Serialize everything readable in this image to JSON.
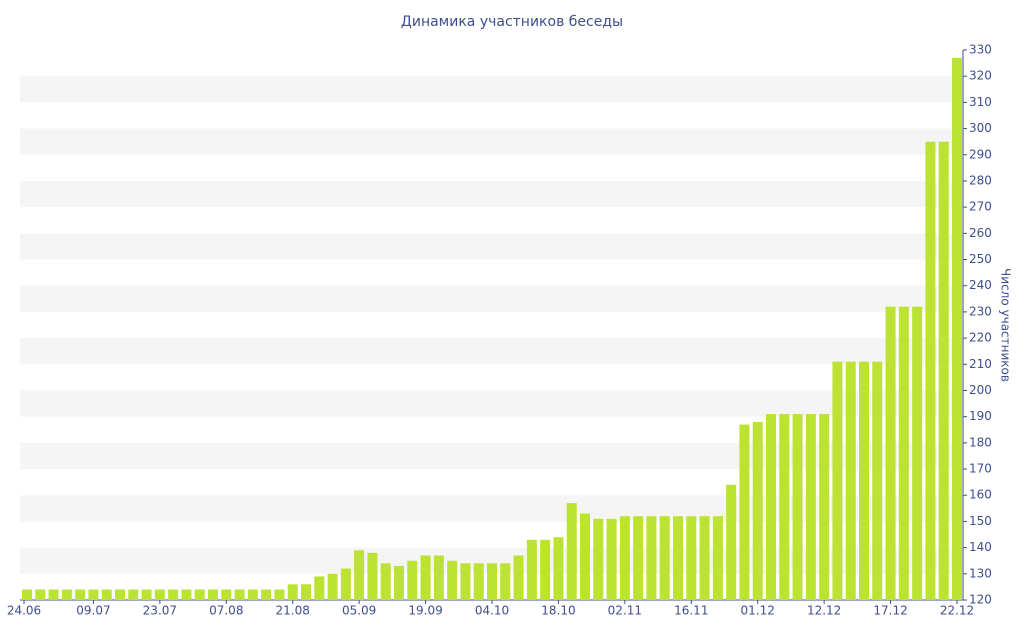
{
  "chart_data": {
    "type": "bar",
    "title": "Динамика участников беседы",
    "y_label": "Число участников",
    "categories": [
      "24.06",
      null,
      null,
      null,
      null,
      "09.07",
      null,
      null,
      null,
      null,
      "23.07",
      null,
      null,
      null,
      null,
      "07.08",
      null,
      null,
      null,
      null,
      "21.08",
      null,
      null,
      null,
      null,
      "05.09",
      null,
      null,
      null,
      null,
      "19.09",
      null,
      null,
      null,
      null,
      "04.10",
      null,
      null,
      null,
      null,
      "18.10",
      null,
      null,
      null,
      null,
      "02.11",
      null,
      null,
      null,
      null,
      "16.11",
      null,
      null,
      null,
      null,
      "01.12",
      null,
      null,
      null,
      null,
      "12.12",
      null,
      null,
      null,
      null,
      "17.12",
      null,
      null,
      null,
      null,
      "22.12"
    ],
    "values": [
      124,
      124,
      124,
      124,
      124,
      124,
      124,
      124,
      124,
      124,
      124,
      124,
      124,
      124,
      124,
      124,
      124,
      124,
      124,
      124,
      126,
      126,
      129,
      130,
      132,
      139,
      138,
      134,
      133,
      135,
      137,
      137,
      135,
      134,
      134,
      134,
      134,
      137,
      143,
      143,
      144,
      157,
      153,
      151,
      151,
      152,
      152,
      152,
      152,
      152,
      152,
      152,
      152,
      164,
      187,
      188,
      191,
      191,
      191,
      191,
      191,
      211,
      211,
      211,
      211,
      232,
      232,
      232,
      295,
      295,
      327
    ],
    "color": "#bde332",
    "ylim": [
      120,
      330
    ],
    "yticks": [
      120,
      130,
      140,
      150,
      160,
      170,
      180,
      190,
      200,
      210,
      220,
      230,
      240,
      250,
      260,
      270,
      280,
      290,
      300,
      310,
      320,
      330
    ],
    "y_axis_side": "right",
    "grid": "bands"
  }
}
